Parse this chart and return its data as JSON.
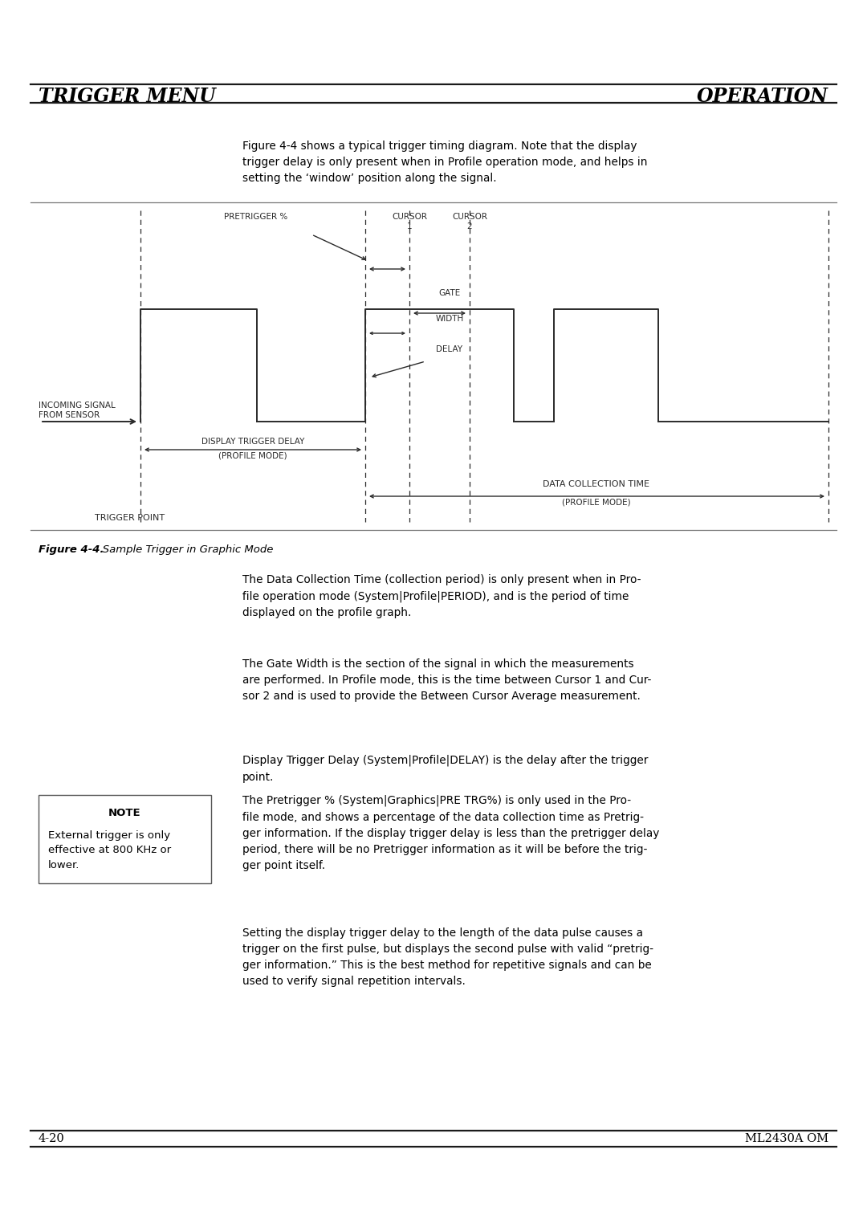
{
  "page_title_left": "TRIGGER MENU",
  "page_title_right": "OPERATION",
  "page_num_left": "4-20",
  "page_num_right": "ML2430A OM",
  "figure_caption_bold": "Figure 4-4.",
  "figure_caption_italic": "   Sample Trigger in Graphic Mode",
  "intro_text": "Figure 4-4 shows a typical trigger timing diagram. Note that the display\ntrigger delay is only present when in Profile operation mode, and helps in\nsetting the ‘window’ position along the signal.",
  "para1": "The Data Collection Time (collection period) is only present when in Pro-\nfile operation mode (System|Profile|PERIOD), and is the period of time\ndisplayed on the profile graph.",
  "para2": "The Gate Width is the section of the signal in which the measurements\nare performed. In Profile mode, this is the time between Cursor 1 and Cur-\nsor 2 and is used to provide the Between Cursor Average measurement.",
  "para3": "Display Trigger Delay (System|Profile|DELAY) is the delay after the trigger\npoint.",
  "para4": "The Pretrigger % (System|Graphics|PRE TRG%) is only used in the Pro-\nfile mode, and shows a percentage of the data collection time as Pretrig-\nger information. If the display trigger delay is less than the pretrigger delay\nperiod, there will be no Pretrigger information as it will be before the trig-\nger point itself.",
  "para5": "Setting the display trigger delay to the length of the data pulse causes a\ntrigger on the first pulse, but displays the second pulse with valid “pretrig-\nger information.” This is the best method for repetitive signals and can be\nused to verify signal repetition intervals.",
  "note_title": "NOTE",
  "note_text": "External trigger is only\neffective at 800 KHz or\nlower.",
  "bg_color": "#ffffff",
  "text_color": "#000000",
  "header_line_color": "#1a1a1a",
  "diagram_line_color": "#2a2a2a",
  "diagram_border_color": "#777777"
}
